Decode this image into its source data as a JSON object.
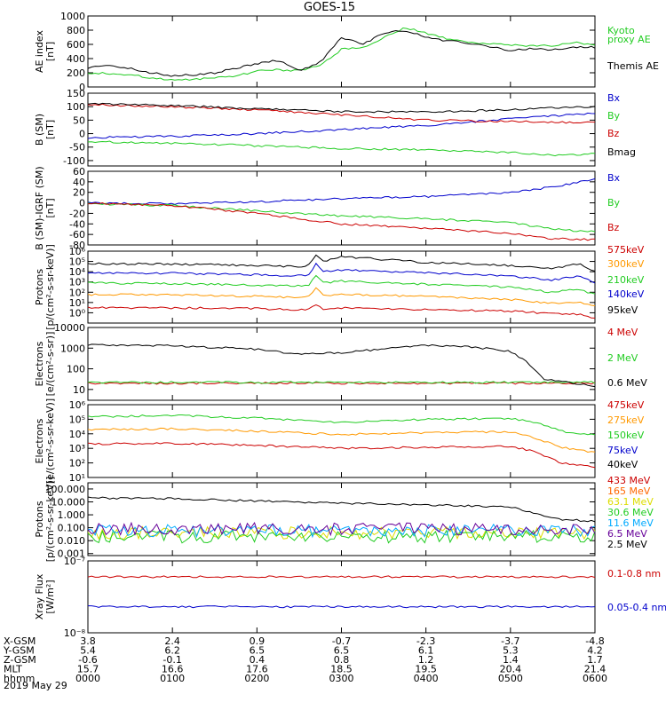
{
  "title": "GOES-15",
  "chart_data": [
    {
      "type": "line",
      "ylabel": "AE index [nT]",
      "ylim": [
        0,
        1000
      ],
      "yticks": [
        "0",
        "200",
        "400",
        "600",
        "800",
        "1000"
      ],
      "yscale": "linear",
      "legend_placement": "right",
      "series": [
        {
          "name": "Kyoto proxy AE",
          "color": "#22cc22",
          "x": [
            0,
            0.25,
            0.5,
            0.75,
            1,
            1.25,
            1.5,
            1.75,
            2,
            2.25,
            2.5,
            2.75,
            3,
            3.25,
            3.5,
            3.75,
            4,
            4.25,
            4.5,
            4.75,
            5,
            5.25,
            5.5,
            5.75,
            6
          ],
          "values": [
            200,
            190,
            170,
            130,
            100,
            110,
            130,
            160,
            220,
            240,
            230,
            300,
            530,
            560,
            690,
            840,
            760,
            680,
            630,
            610,
            590,
            580,
            580,
            630,
            590
          ]
        },
        {
          "name": "Themis AE",
          "color": "#000000",
          "x": [
            0,
            0.25,
            0.5,
            0.75,
            1,
            1.25,
            1.5,
            1.75,
            2,
            2.25,
            2.5,
            2.75,
            3,
            3.25,
            3.5,
            3.75,
            4,
            4.25,
            4.5,
            4.75,
            5,
            5.25,
            5.5,
            5.75,
            6
          ],
          "values": [
            270,
            300,
            260,
            200,
            160,
            170,
            200,
            260,
            330,
            380,
            220,
            350,
            700,
            600,
            760,
            800,
            700,
            650,
            620,
            560,
            520,
            540,
            520,
            560,
            560
          ]
        }
      ]
    },
    {
      "type": "line",
      "ylabel": "B (SM) [nT]",
      "ylim": [
        -120,
        150
      ],
      "yticks": [
        "-100",
        "-50",
        "0",
        "50",
        "100",
        "150"
      ],
      "yscale": "linear",
      "series": [
        {
          "name": "Bx",
          "color": "#0000cc",
          "x": [
            0,
            1,
            2,
            3,
            4,
            5,
            5.5,
            6
          ],
          "values": [
            -15,
            -10,
            0,
            15,
            30,
            55,
            65,
            75
          ]
        },
        {
          "name": "By",
          "color": "#22cc22",
          "x": [
            0,
            1,
            2,
            3,
            4,
            5,
            5.5,
            6
          ],
          "values": [
            -30,
            -35,
            -45,
            -55,
            -60,
            -70,
            -80,
            -75
          ]
        },
        {
          "name": "Bz",
          "color": "#cc0000",
          "x": [
            0,
            1,
            2,
            3,
            4,
            5,
            5.5,
            6
          ],
          "values": [
            108,
            100,
            88,
            70,
            50,
            45,
            42,
            42
          ]
        },
        {
          "name": "Bmag",
          "color": "#000000",
          "x": [
            0,
            1,
            2,
            3,
            4,
            5,
            5.5,
            6
          ],
          "values": [
            112,
            105,
            92,
            82,
            80,
            88,
            95,
            100
          ]
        }
      ]
    },
    {
      "type": "line",
      "ylabel": "B (SM)-IGRF (SM) [nT]",
      "ylim": [
        -80,
        60
      ],
      "yticks": [
        "-80",
        "-60",
        "-40",
        "-20",
        "0",
        "20",
        "40",
        "60"
      ],
      "yscale": "linear",
      "series": [
        {
          "name": "Bx",
          "color": "#0000cc",
          "x": [
            0,
            1,
            2,
            3,
            4,
            5,
            5.5,
            6
          ],
          "values": [
            0,
            -2,
            2,
            8,
            12,
            20,
            30,
            45
          ]
        },
        {
          "name": "By",
          "color": "#22cc22",
          "x": [
            0,
            1,
            2,
            3,
            4,
            5,
            5.5,
            6
          ],
          "values": [
            -2,
            -5,
            -15,
            -25,
            -30,
            -38,
            -50,
            -55
          ]
        },
        {
          "name": "Bz",
          "color": "#cc0000",
          "x": [
            0,
            1,
            2,
            3,
            4,
            5,
            5.5,
            6
          ],
          "values": [
            0,
            -5,
            -20,
            -40,
            -48,
            -58,
            -68,
            -70
          ]
        }
      ]
    },
    {
      "type": "line",
      "ylabel": "Protons [p/(cm²-s-sr-keV)]",
      "ylim": [
        0.1,
        1000000
      ],
      "yticks": [
        "10⁰",
        "10¹",
        "10²",
        "10³",
        "10⁴",
        "10⁵",
        "10⁶"
      ],
      "yscale": "log",
      "series": [
        {
          "name": "575keV",
          "color": "#cc0000",
          "x": [
            0,
            1,
            2,
            2.6,
            2.7,
            2.8,
            3,
            4,
            5,
            5.5,
            5.8,
            6
          ],
          "values": [
            3,
            3,
            2.5,
            2,
            5,
            2,
            3,
            2,
            1.5,
            0.8,
            0.7,
            0.3
          ]
        },
        {
          "name": "300keV",
          "color": "#ff9900",
          "x": [
            0,
            1,
            2,
            2.6,
            2.7,
            2.8,
            3,
            4,
            5,
            5.5,
            5.8,
            6
          ],
          "values": [
            60,
            55,
            40,
            30,
            300,
            40,
            60,
            40,
            20,
            8,
            10,
            4
          ]
        },
        {
          "name": "210keV",
          "color": "#22cc22",
          "x": [
            0,
            1,
            2,
            2.6,
            2.7,
            2.8,
            3,
            4,
            5,
            5.5,
            5.8,
            6
          ],
          "values": [
            800,
            700,
            500,
            400,
            4000,
            800,
            1200,
            600,
            300,
            100,
            200,
            60
          ]
        },
        {
          "name": "140keV",
          "color": "#0000cc",
          "x": [
            0,
            1,
            2,
            2.6,
            2.7,
            2.8,
            3,
            4,
            5,
            5.5,
            5.8,
            6
          ],
          "values": [
            8000,
            7000,
            5000,
            4000,
            60000,
            10000,
            15000,
            8000,
            4000,
            1500,
            4000,
            800
          ]
        },
        {
          "name": "95keV",
          "color": "#000000",
          "x": [
            0,
            1,
            2,
            2.6,
            2.7,
            2.8,
            3,
            4,
            5,
            5.5,
            5.8,
            6
          ],
          "values": [
            60000,
            55000,
            40000,
            30000,
            500000,
            100000,
            300000,
            80000,
            40000,
            20000,
            60000,
            10000
          ]
        }
      ]
    },
    {
      "type": "line",
      "ylabel": "Electrons [e/(cm²-s-sr)]",
      "ylim": [
        3,
        10000
      ],
      "yticks": [
        "10",
        "100",
        "1000",
        "10000"
      ],
      "yscale": "log",
      "series": [
        {
          "name": "4 MeV",
          "color": "#cc0000",
          "x": [
            0,
            6
          ],
          "values": [
            20,
            20
          ]
        },
        {
          "name": "2 MeV",
          "color": "#22cc22",
          "x": [
            0,
            6
          ],
          "values": [
            22,
            22
          ]
        },
        {
          "name": "0.6 MeV",
          "color": "#000000",
          "x": [
            0,
            1,
            2,
            2.5,
            3,
            4,
            4.5,
            5,
            5.2,
            5.4,
            6
          ],
          "values": [
            1400,
            1300,
            900,
            500,
            600,
            1400,
            1200,
            700,
            200,
            30,
            15
          ]
        }
      ]
    },
    {
      "type": "line",
      "ylabel": "Electrons [e/(cm²-s-sr-keV)]",
      "ylim": [
        10,
        1000000
      ],
      "yticks": [
        "10¹",
        "10²",
        "10³",
        "10⁴",
        "10⁵",
        "10⁶"
      ],
      "yscale": "log",
      "series": [
        {
          "name": "475keV",
          "color": "#cc0000",
          "x": [
            0,
            1,
            2,
            3,
            4,
            5,
            5.3,
            5.6,
            6
          ],
          "values": [
            2000,
            2200,
            1600,
            1000,
            1200,
            1400,
            600,
            100,
            50
          ]
        },
        {
          "name": "275keV",
          "color": "#ff9900",
          "x": [
            0,
            1,
            2,
            3,
            4,
            5,
            5.3,
            5.6,
            6
          ],
          "values": [
            20000,
            22000,
            15000,
            9000,
            12000,
            14000,
            5000,
            1200,
            500
          ]
        },
        {
          "name": "150keV",
          "color": "#22cc22",
          "x": [
            0,
            1,
            2,
            3,
            4,
            5,
            5.3,
            5.6,
            6
          ],
          "values": [
            150000,
            180000,
            120000,
            60000,
            100000,
            110000,
            60000,
            15000,
            8000
          ]
        },
        {
          "name": "75keV",
          "color": "#0000cc",
          "x": [],
          "values": []
        },
        {
          "name": "40keV",
          "color": "#000000",
          "x": [],
          "values": []
        }
      ]
    },
    {
      "type": "line",
      "ylabel": "Protons [p/(cm²-s-sr-keV)]",
      "ylim": [
        0.0007,
        300
      ],
      "yticks": [
        "0.001",
        "0.010",
        "0.100",
        "1.000",
        "10.000",
        "100.000"
      ],
      "yscale": "log",
      "series": [
        {
          "name": "433 MeV",
          "color": "#cc0000",
          "x": [],
          "values": []
        },
        {
          "name": "165 MeV",
          "color": "#ff6600",
          "x": [],
          "values": []
        },
        {
          "name": "63.1 MeV",
          "color": "#dddd00",
          "x": [
            0,
            6
          ],
          "values": [
            0.04,
            0.04
          ]
        },
        {
          "name": "30.6 MeV",
          "color": "#22cc22",
          "x": [
            0,
            6
          ],
          "values": [
            0.02,
            0.02
          ]
        },
        {
          "name": "11.6 MeV",
          "color": "#00aaff",
          "x": [
            0,
            6
          ],
          "values": [
            0.06,
            0.06
          ]
        },
        {
          "name": "6.5 MeV",
          "color": "#660099",
          "x": [
            0,
            6
          ],
          "values": [
            0.08,
            0.08
          ]
        },
        {
          "name": "2.5 MeV",
          "color": "#000000",
          "x": [
            0,
            1,
            2,
            3,
            4,
            5,
            5.5,
            6
          ],
          "values": [
            20,
            18,
            12,
            8,
            6,
            4,
            0.5,
            0.3
          ]
        }
      ]
    },
    {
      "type": "line",
      "ylabel": "Xray Flux [W/m²]",
      "ylim": [
        1e-08,
        1e-07
      ],
      "yticks": [
        "10⁻⁸",
        "10⁻⁷"
      ],
      "yscale": "log",
      "series": [
        {
          "name": "0.1-0.8 nm",
          "color": "#cc0000",
          "x": [
            0,
            6
          ],
          "values": [
            6e-08,
            6e-08
          ]
        },
        {
          "name": "0.05-0.4 nm",
          "color": "#0000cc",
          "x": [
            0,
            6
          ],
          "values": [
            2.3e-08,
            2.3e-08
          ]
        }
      ]
    }
  ],
  "x_axis": {
    "xlim": [
      0,
      6
    ],
    "rows": [
      {
        "label": "X-GSM",
        "values": [
          "3.8",
          "2.4",
          "0.9",
          "-0.7",
          "-2.3",
          "-3.7",
          "-4.8"
        ]
      },
      {
        "label": "Y-GSM",
        "values": [
          "5.4",
          "6.2",
          "6.5",
          "6.5",
          "6.1",
          "5.3",
          "4.2"
        ]
      },
      {
        "label": "Z-GSM",
        "values": [
          "-0.6",
          "-0.1",
          "0.4",
          "0.8",
          "1.2",
          "1.4",
          "1.7"
        ]
      },
      {
        "label": "MLT",
        "values": [
          "15.7",
          "16.6",
          "17.6",
          "18.5",
          "19.5",
          "20.4",
          "21.4"
        ]
      },
      {
        "label": "hhmm",
        "values": [
          "0000",
          "0100",
          "0200",
          "0300",
          "0400",
          "0500",
          "0600"
        ]
      }
    ],
    "date": "2019 May 29"
  }
}
